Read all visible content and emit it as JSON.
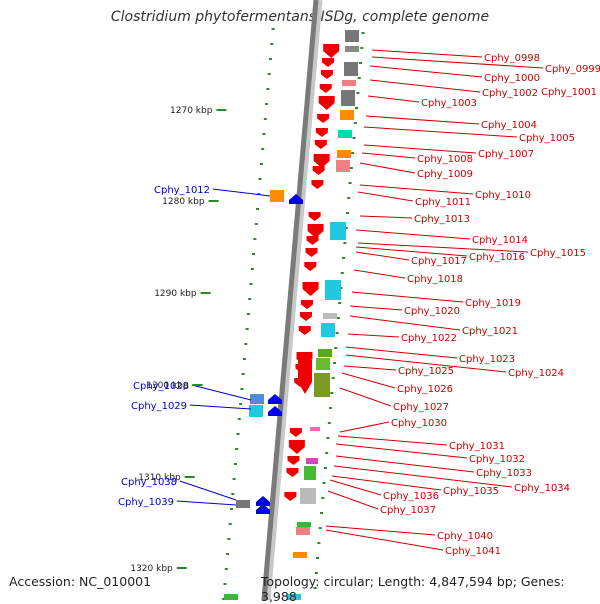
{
  "title": "Clostridium phytofermentans ISDg, complete genome",
  "footer": {
    "accession": "Accession: NC_010001",
    "topology": "Topology: circular; Length: 4,847,594 bp; Genes: 3,988"
  },
  "colors": {
    "forward_gene_label": "#0000cc",
    "reverse_gene_label": "#cc0000",
    "forward_arrow": "#0000ee",
    "reverse_arrow": "#ee0000",
    "backbone": "#7a7a7a",
    "tick": "#2a8a2a"
  },
  "scale_labels": [
    "1270 kbp",
    "1280 kbp",
    "1290 kbp",
    "1300 kbp",
    "1310 kbp",
    "1320 kbp"
  ],
  "forward_genes": [
    "Cphy_1012",
    "Cphy_1028",
    "Cphy_1029",
    "Cphy_1038",
    "Cphy_1039"
  ],
  "reverse_genes": [
    "Cphy_0998",
    "Cphy_0999",
    "Cphy_1000",
    "Cphy_1002",
    "Cphy_1001",
    "Cphy_1003",
    "Cphy_1004",
    "Cphy_1005",
    "Cphy_1007",
    "Cphy_1008",
    "Cphy_1009",
    "Cphy_1010",
    "Cphy_1011",
    "Cphy_1013",
    "Cphy_1014",
    "Cphy_1015",
    "Cphy_1016",
    "Cphy_1017",
    "Cphy_1018",
    "Cphy_1019",
    "Cphy_1020",
    "Cphy_1021",
    "Cphy_1022",
    "Cphy_1023",
    "Cphy_1024",
    "Cphy_1025",
    "Cphy_1026",
    "Cphy_1027",
    "Cphy_1030",
    "Cphy_1031",
    "Cphy_1032",
    "Cphy_1033",
    "Cphy_1034",
    "Cphy_1035",
    "Cphy_1036",
    "Cphy_1037",
    "Cphy_1040",
    "Cphy_1041"
  ]
}
